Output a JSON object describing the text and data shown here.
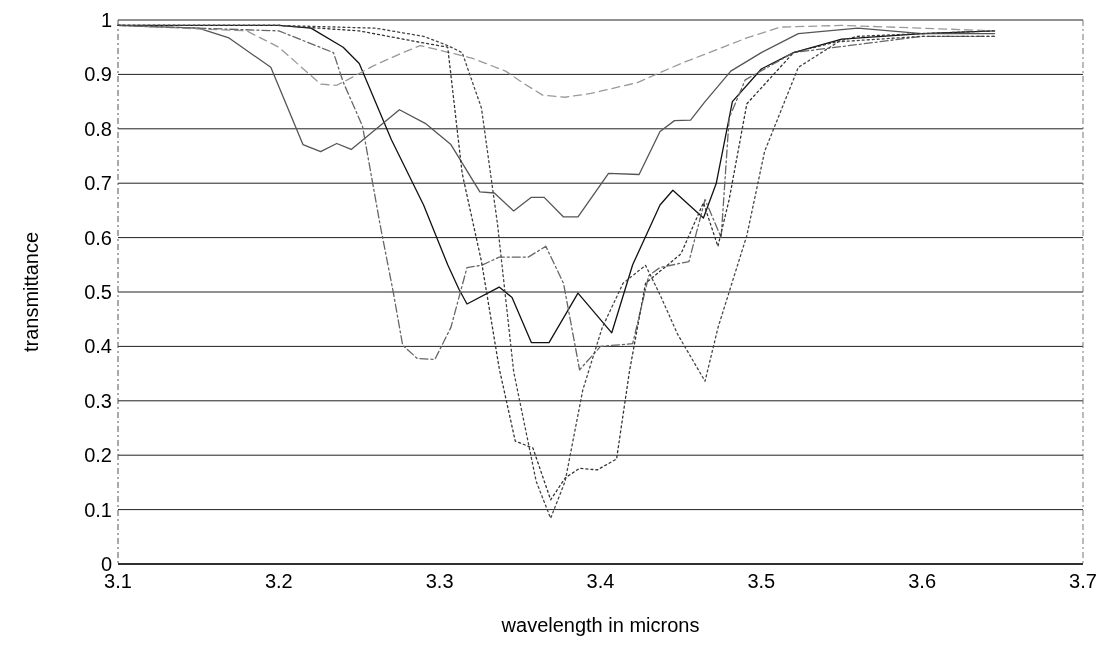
{
  "chart_data": {
    "type": "line",
    "xlabel": "wavelength in microns",
    "ylabel": "transmittance",
    "xlim": [
      3.1,
      3.7
    ],
    "ylim": [
      0,
      1
    ],
    "xticks": [
      3.1,
      3.2,
      3.3,
      3.4,
      3.5,
      3.6,
      3.7
    ],
    "yticks": [
      0,
      0.1,
      0.2,
      0.3,
      0.4,
      0.5,
      0.6,
      0.7,
      0.8,
      0.9,
      1
    ],
    "grid": "y",
    "series": [
      {
        "color": "#111111",
        "line_style": "solid",
        "x": [
          3.1,
          3.15,
          3.2,
          3.22,
          3.24,
          3.25,
          3.27,
          3.29,
          3.305,
          3.312,
          3.317,
          3.337,
          3.345,
          3.357,
          3.368,
          3.386,
          3.407,
          3.42,
          3.437,
          3.445,
          3.464,
          3.472,
          3.482,
          3.5,
          3.52,
          3.55,
          3.6,
          3.645
        ],
        "values": [
          0.99,
          0.99,
          0.99,
          0.985,
          0.95,
          0.92,
          0.78,
          0.66,
          0.55,
          0.505,
          0.478,
          0.509,
          0.49,
          0.407,
          0.407,
          0.498,
          0.425,
          0.55,
          0.66,
          0.687,
          0.636,
          0.7,
          0.85,
          0.91,
          0.94,
          0.965,
          0.975,
          0.98
        ]
      },
      {
        "color": "#555555",
        "line_style": "solid",
        "x": [
          3.1,
          3.15,
          3.169,
          3.195,
          3.215,
          3.226,
          3.236,
          3.245,
          3.275,
          3.291,
          3.307,
          3.325,
          3.334,
          3.346,
          3.357,
          3.365,
          3.377,
          3.386,
          3.405,
          3.424,
          3.437,
          3.446,
          3.456,
          3.465,
          3.481,
          3.5,
          3.523,
          3.56,
          3.6,
          3.645
        ],
        "values": [
          0.99,
          0.985,
          0.967,
          0.913,
          0.771,
          0.758,
          0.773,
          0.762,
          0.835,
          0.81,
          0.771,
          0.684,
          0.682,
          0.649,
          0.674,
          0.674,
          0.638,
          0.638,
          0.718,
          0.716,
          0.795,
          0.815,
          0.816,
          0.85,
          0.906,
          0.94,
          0.975,
          0.985,
          0.975,
          0.975
        ]
      },
      {
        "color": "#999999",
        "line_style": "dashed",
        "x": [
          3.1,
          3.18,
          3.2,
          3.226,
          3.236,
          3.242,
          3.259,
          3.277,
          3.288,
          3.32,
          3.341,
          3.353,
          3.364,
          3.378,
          3.394,
          3.423,
          3.45,
          3.491,
          3.512,
          3.55,
          3.6,
          3.645
        ],
        "values": [
          0.99,
          0.98,
          0.95,
          0.882,
          0.88,
          0.889,
          0.916,
          0.94,
          0.953,
          0.93,
          0.906,
          0.882,
          0.862,
          0.858,
          0.865,
          0.885,
          0.92,
          0.967,
          0.987,
          0.99,
          0.985,
          0.98
        ]
      },
      {
        "color": "#666666",
        "line_style": "dashdot",
        "x": [
          3.1,
          3.15,
          3.2,
          3.234,
          3.24,
          3.252,
          3.263,
          3.271,
          3.277,
          3.286,
          3.297,
          3.307,
          3.317,
          3.326,
          3.337,
          3.355,
          3.366,
          3.377,
          3.387,
          3.4,
          3.42,
          3.43,
          3.437,
          3.455,
          3.465,
          3.475,
          3.48,
          3.49,
          3.52,
          3.6,
          3.645
        ],
        "values": [
          0.99,
          0.985,
          0.98,
          0.94,
          0.886,
          0.805,
          0.623,
          0.502,
          0.402,
          0.378,
          0.376,
          0.435,
          0.545,
          0.549,
          0.564,
          0.564,
          0.584,
          0.516,
          0.357,
          0.4,
          0.405,
          0.53,
          0.545,
          0.556,
          0.67,
          0.6,
          0.82,
          0.89,
          0.94,
          0.97,
          0.97
        ]
      },
      {
        "color": "#333333",
        "line_style": "dotted",
        "x": [
          3.1,
          3.2,
          3.25,
          3.286,
          3.305,
          3.314,
          3.326,
          3.337,
          3.347,
          3.358,
          3.369,
          3.378,
          3.387,
          3.398,
          3.41,
          3.418,
          3.428,
          3.45,
          3.464,
          3.473,
          3.48,
          3.491,
          3.52,
          3.56,
          3.6,
          3.645
        ],
        "values": [
          0.99,
          0.99,
          0.98,
          0.96,
          0.95,
          0.718,
          0.556,
          0.36,
          0.226,
          0.213,
          0.118,
          0.158,
          0.176,
          0.173,
          0.193,
          0.354,
          0.516,
          0.57,
          0.664,
          0.584,
          0.67,
          0.846,
          0.94,
          0.97,
          0.975,
          0.98
        ]
      },
      {
        "color": "#444444",
        "line_style": "dotted",
        "x": [
          3.1,
          3.2,
          3.26,
          3.29,
          3.305,
          3.314,
          3.326,
          3.336,
          3.346,
          3.36,
          3.369,
          3.378,
          3.389,
          3.401,
          3.414,
          3.428,
          3.437,
          3.448,
          3.465,
          3.473,
          3.491,
          3.502,
          3.523,
          3.548,
          3.6,
          3.645
        ],
        "values": [
          0.99,
          0.99,
          0.985,
          0.97,
          0.953,
          0.94,
          0.838,
          0.624,
          0.354,
          0.152,
          0.084,
          0.152,
          0.32,
          0.434,
          0.516,
          0.549,
          0.495,
          0.422,
          0.336,
          0.434,
          0.604,
          0.758,
          0.913,
          0.96,
          0.97,
          0.97
        ]
      }
    ]
  }
}
